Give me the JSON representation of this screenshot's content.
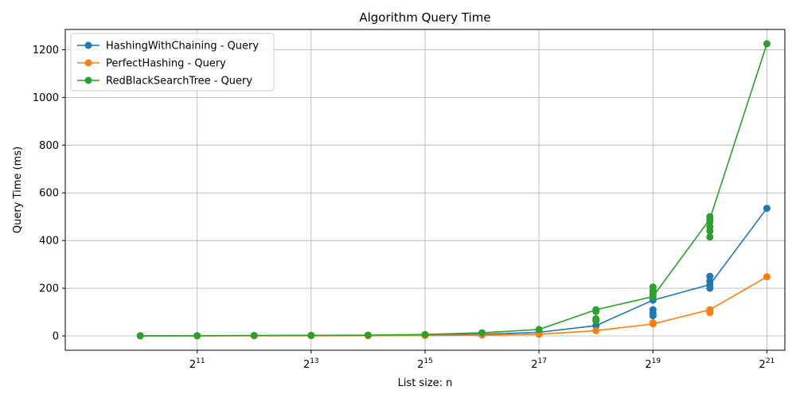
{
  "chart_data": {
    "type": "line",
    "title": "Algorithm Query Time",
    "xlabel": "List size: n",
    "ylabel": "Query Time (ms)",
    "x_scale": "log2",
    "xlim": [
      512,
      2097152
    ],
    "ylim": [
      -60,
      1285
    ],
    "x_ticks": [
      {
        "value": 2048,
        "base": "2",
        "exp": "11"
      },
      {
        "value": 8192,
        "base": "2",
        "exp": "13"
      },
      {
        "value": 32768,
        "base": "2",
        "exp": "15"
      },
      {
        "value": 131072,
        "base": "2",
        "exp": "17"
      },
      {
        "value": 524288,
        "base": "2",
        "exp": "19"
      },
      {
        "value": 2097152,
        "base": "2",
        "exp": "21"
      }
    ],
    "y_ticks": [
      0,
      200,
      400,
      600,
      800,
      1000,
      1200
    ],
    "grid": true,
    "legend_position": "top-left",
    "series": [
      {
        "name": "HashingWithChaining - Query",
        "color": "#1f77b4",
        "line": [
          [
            1024,
            0.5
          ],
          [
            2048,
            0.8
          ],
          [
            4096,
            1.2
          ],
          [
            8192,
            1.8
          ],
          [
            16384,
            2.5
          ],
          [
            32768,
            4
          ],
          [
            65536,
            7
          ],
          [
            131072,
            15
          ],
          [
            262144,
            43
          ],
          [
            524288,
            150
          ],
          [
            1048576,
            215
          ],
          [
            2097152,
            535
          ]
        ],
        "points": [
          [
            1024,
            0.5
          ],
          [
            2048,
            0.8
          ],
          [
            4096,
            1.2
          ],
          [
            8192,
            1.8
          ],
          [
            16384,
            2.5
          ],
          [
            32768,
            4
          ],
          [
            65536,
            7
          ],
          [
            131072,
            15
          ],
          [
            262144,
            43
          ],
          [
            524288,
            150
          ],
          [
            524288,
            110
          ],
          [
            524288,
            95
          ],
          [
            524288,
            85
          ],
          [
            1048576,
            215
          ],
          [
            1048576,
            250
          ],
          [
            1048576,
            230
          ],
          [
            1048576,
            200
          ],
          [
            2097152,
            535
          ]
        ]
      },
      {
        "name": "PerfectHashing - Query",
        "color": "#ff7f0e",
        "line": [
          [
            1024,
            0.3
          ],
          [
            2048,
            0.4
          ],
          [
            4096,
            0.6
          ],
          [
            8192,
            0.9
          ],
          [
            16384,
            1.2
          ],
          [
            32768,
            2
          ],
          [
            65536,
            3.5
          ],
          [
            131072,
            7
          ],
          [
            262144,
            22
          ],
          [
            524288,
            50
          ],
          [
            1048576,
            110
          ],
          [
            2097152,
            248
          ]
        ],
        "points": [
          [
            1024,
            0.3
          ],
          [
            2048,
            0.4
          ],
          [
            4096,
            0.6
          ],
          [
            8192,
            0.9
          ],
          [
            16384,
            1.2
          ],
          [
            32768,
            2
          ],
          [
            65536,
            3.5
          ],
          [
            131072,
            7
          ],
          [
            262144,
            22
          ],
          [
            524288,
            50
          ],
          [
            524288,
            55
          ],
          [
            1048576,
            110
          ],
          [
            1048576,
            98
          ],
          [
            2097152,
            248
          ]
        ]
      },
      {
        "name": "RedBlackSearchTree - Query",
        "color": "#2ca02c",
        "line": [
          [
            1024,
            0.8
          ],
          [
            2048,
            1.2
          ],
          [
            4096,
            1.8
          ],
          [
            8192,
            2.5
          ],
          [
            16384,
            3.5
          ],
          [
            32768,
            6
          ],
          [
            65536,
            13
          ],
          [
            131072,
            27
          ],
          [
            262144,
            110
          ],
          [
            524288,
            165
          ],
          [
            1048576,
            490
          ],
          [
            2097152,
            1225
          ]
        ],
        "points": [
          [
            1024,
            0.8
          ],
          [
            2048,
            1.2
          ],
          [
            4096,
            1.8
          ],
          [
            8192,
            2.5
          ],
          [
            16384,
            3.5
          ],
          [
            32768,
            6
          ],
          [
            65536,
            13
          ],
          [
            131072,
            27
          ],
          [
            262144,
            110
          ],
          [
            262144,
            103
          ],
          [
            262144,
            72
          ],
          [
            262144,
            63
          ],
          [
            524288,
            165
          ],
          [
            524288,
            205
          ],
          [
            524288,
            190
          ],
          [
            524288,
            175
          ],
          [
            1048576,
            490
          ],
          [
            1048576,
            500
          ],
          [
            1048576,
            478
          ],
          [
            1048576,
            458
          ],
          [
            1048576,
            440
          ],
          [
            1048576,
            415
          ],
          [
            2097152,
            1225
          ]
        ]
      }
    ]
  }
}
